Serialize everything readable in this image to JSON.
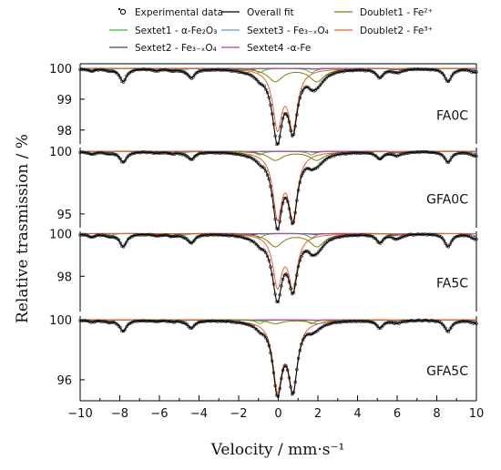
{
  "chart_data": {
    "type": "line",
    "xlabel": "Velocity / mm·s⁻¹",
    "ylabel": "Relative trasmission / %",
    "xlim": [
      -10,
      10
    ],
    "xticks": [
      "-10",
      "-8",
      "-6",
      "-4",
      "-2",
      "0",
      "2",
      "4",
      "6",
      "8",
      "10"
    ],
    "legend": [
      {
        "key": "exp",
        "label": "Experimental data",
        "marker": "open-circle",
        "color": "#000000"
      },
      {
        "key": "fit",
        "label": "Overall fit",
        "color": "#000000"
      },
      {
        "key": "d1",
        "label": "Doublet1 - Fe²⁺",
        "color": "#808000"
      },
      {
        "key": "s1",
        "label": "Sextet1 - α-Fe₂O₃",
        "color": "#3cb43c"
      },
      {
        "key": "s3",
        "label": "Sextet3 - Fe₃₋ₓO₄",
        "color": "#5aa0c8"
      },
      {
        "key": "d2",
        "label": "Doublet2 - Fe³⁺",
        "color": "#e8602c"
      },
      {
        "key": "s2",
        "label": "Sextet2 - Fe₃₋ₓO₄",
        "color": "#3c3c8c"
      },
      {
        "key": "s4",
        "label": "Sextet4 -α-Fe",
        "color": "#c83ca0"
      }
    ],
    "panels": [
      {
        "name": "FA0C",
        "ylim": [
          97.55,
          100.15
        ],
        "yticks": [
          "100",
          "99",
          "98"
        ],
        "ytick_values": [
          100,
          99,
          98
        ],
        "components": [
          {
            "key": "s1",
            "kind": "sextet",
            "center": 0.37,
            "outer": 8.2,
            "depth": 0.42,
            "width": 0.42
          },
          {
            "key": "s2",
            "kind": "sextet",
            "center": 0.28,
            "outer": 9.7,
            "depth": 0.07,
            "width": 0.45
          },
          {
            "key": "s3",
            "kind": "sextet",
            "center": 0.65,
            "outer": 9.2,
            "depth": 0.05,
            "width": 0.45
          },
          {
            "key": "s4",
            "kind": "sextet",
            "center": 0.0,
            "outer": 10.6,
            "depth": 0.08,
            "width": 0.45
          },
          {
            "key": "d1",
            "kind": "doublet",
            "center": 0.9,
            "split": 2.1,
            "depth": 0.42,
            "width": 0.9
          },
          {
            "key": "d2",
            "kind": "doublet",
            "center": 0.35,
            "split": 0.78,
            "depth": 1.85,
            "width": 0.55
          }
        ]
      },
      {
        "name": "GFA0C",
        "ylim": [
          93.9,
          100.3
        ],
        "yticks": [
          "100",
          "95"
        ],
        "ytick_values": [
          100,
          95
        ],
        "components": [
          {
            "key": "s1",
            "kind": "sextet",
            "center": 0.37,
            "outer": 8.2,
            "depth": 0.85,
            "width": 0.42
          },
          {
            "key": "s2",
            "kind": "sextet",
            "center": 0.28,
            "outer": 9.7,
            "depth": 0.2,
            "width": 0.45
          },
          {
            "key": "s3",
            "kind": "sextet",
            "center": 0.65,
            "outer": 9.2,
            "depth": 0.14,
            "width": 0.45
          },
          {
            "key": "s4",
            "kind": "sextet",
            "center": 0.0,
            "outer": 10.6,
            "depth": 0.15,
            "width": 0.45
          },
          {
            "key": "d1",
            "kind": "doublet",
            "center": 0.9,
            "split": 2.1,
            "depth": 0.7,
            "width": 0.9
          },
          {
            "key": "d2",
            "kind": "doublet",
            "center": 0.35,
            "split": 0.78,
            "depth": 5.0,
            "width": 0.55
          }
        ]
      },
      {
        "name": "FA5C",
        "ylim": [
          96.35,
          100.1
        ],
        "yticks": [
          "100",
          "98"
        ],
        "ytick_values": [
          100,
          98
        ],
        "components": [
          {
            "key": "s1",
            "kind": "sextet",
            "center": 0.37,
            "outer": 8.2,
            "depth": 0.6,
            "width": 0.42
          },
          {
            "key": "s2",
            "kind": "sextet",
            "center": 0.28,
            "outer": 9.7,
            "depth": 0.15,
            "width": 0.45
          },
          {
            "key": "s3",
            "kind": "sextet",
            "center": 0.65,
            "outer": 9.2,
            "depth": 0.1,
            "width": 0.45
          },
          {
            "key": "s4",
            "kind": "sextet",
            "center": 0.0,
            "outer": 10.6,
            "depth": 0.12,
            "width": 0.45
          },
          {
            "key": "d1",
            "kind": "doublet",
            "center": 0.9,
            "split": 2.1,
            "depth": 0.6,
            "width": 0.9
          },
          {
            "key": "d2",
            "kind": "doublet",
            "center": 0.35,
            "split": 0.78,
            "depth": 2.35,
            "width": 0.55
          }
        ]
      },
      {
        "name": "GFA5C",
        "ylim": [
          94.6,
          100.25
        ],
        "yticks": [
          "100",
          "96"
        ],
        "ytick_values": [
          100,
          96
        ],
        "components": [
          {
            "key": "s1",
            "kind": "sextet",
            "center": 0.37,
            "outer": 8.2,
            "depth": 0.75,
            "width": 0.42
          },
          {
            "key": "s2",
            "kind": "sextet",
            "center": 0.28,
            "outer": 9.7,
            "depth": 0.12,
            "width": 0.45
          },
          {
            "key": "s3",
            "kind": "sextet",
            "center": 0.65,
            "outer": 9.2,
            "depth": 0.09,
            "width": 0.45
          },
          {
            "key": "s4",
            "kind": "sextet",
            "center": 0.0,
            "outer": 10.6,
            "depth": 0.1,
            "width": 0.45
          },
          {
            "key": "d1",
            "kind": "doublet",
            "center": 0.9,
            "split": 2.1,
            "depth": 0.25,
            "width": 0.9
          },
          {
            "key": "d2",
            "kind": "doublet",
            "center": 0.35,
            "split": 0.78,
            "depth": 4.4,
            "width": 0.55
          }
        ]
      }
    ]
  }
}
